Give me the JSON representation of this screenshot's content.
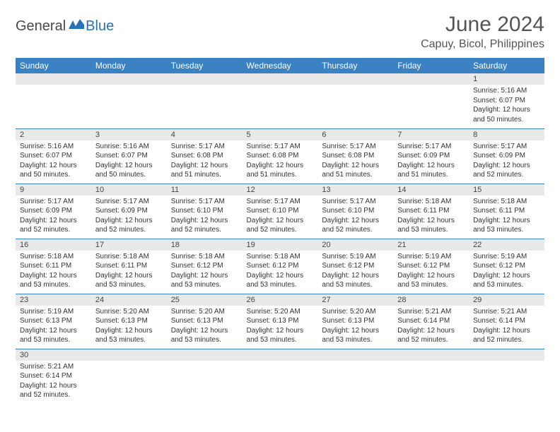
{
  "logo": {
    "text1": "General",
    "text2": "Blue"
  },
  "title": "June 2024",
  "location": "Capuy, Bicol, Philippines",
  "colors": {
    "header_bg": "#3a82c4",
    "header_text": "#ffffff",
    "daynum_bg": "#e9e9e9",
    "border": "#3a82c4",
    "logo_blue": "#2873b8",
    "logo_gray": "#4a4a4a"
  },
  "weekdays": [
    "Sunday",
    "Monday",
    "Tuesday",
    "Wednesday",
    "Thursday",
    "Friday",
    "Saturday"
  ],
  "weeks": [
    [
      {
        "day": "",
        "sunrise": "",
        "sunset": "",
        "daylight1": "",
        "daylight2": ""
      },
      {
        "day": "",
        "sunrise": "",
        "sunset": "",
        "daylight1": "",
        "daylight2": ""
      },
      {
        "day": "",
        "sunrise": "",
        "sunset": "",
        "daylight1": "",
        "daylight2": ""
      },
      {
        "day": "",
        "sunrise": "",
        "sunset": "",
        "daylight1": "",
        "daylight2": ""
      },
      {
        "day": "",
        "sunrise": "",
        "sunset": "",
        "daylight1": "",
        "daylight2": ""
      },
      {
        "day": "",
        "sunrise": "",
        "sunset": "",
        "daylight1": "",
        "daylight2": ""
      },
      {
        "day": "1",
        "sunrise": "Sunrise: 5:16 AM",
        "sunset": "Sunset: 6:07 PM",
        "daylight1": "Daylight: 12 hours",
        "daylight2": "and 50 minutes."
      }
    ],
    [
      {
        "day": "2",
        "sunrise": "Sunrise: 5:16 AM",
        "sunset": "Sunset: 6:07 PM",
        "daylight1": "Daylight: 12 hours",
        "daylight2": "and 50 minutes."
      },
      {
        "day": "3",
        "sunrise": "Sunrise: 5:16 AM",
        "sunset": "Sunset: 6:07 PM",
        "daylight1": "Daylight: 12 hours",
        "daylight2": "and 50 minutes."
      },
      {
        "day": "4",
        "sunrise": "Sunrise: 5:17 AM",
        "sunset": "Sunset: 6:08 PM",
        "daylight1": "Daylight: 12 hours",
        "daylight2": "and 51 minutes."
      },
      {
        "day": "5",
        "sunrise": "Sunrise: 5:17 AM",
        "sunset": "Sunset: 6:08 PM",
        "daylight1": "Daylight: 12 hours",
        "daylight2": "and 51 minutes."
      },
      {
        "day": "6",
        "sunrise": "Sunrise: 5:17 AM",
        "sunset": "Sunset: 6:08 PM",
        "daylight1": "Daylight: 12 hours",
        "daylight2": "and 51 minutes."
      },
      {
        "day": "7",
        "sunrise": "Sunrise: 5:17 AM",
        "sunset": "Sunset: 6:09 PM",
        "daylight1": "Daylight: 12 hours",
        "daylight2": "and 51 minutes."
      },
      {
        "day": "8",
        "sunrise": "Sunrise: 5:17 AM",
        "sunset": "Sunset: 6:09 PM",
        "daylight1": "Daylight: 12 hours",
        "daylight2": "and 52 minutes."
      }
    ],
    [
      {
        "day": "9",
        "sunrise": "Sunrise: 5:17 AM",
        "sunset": "Sunset: 6:09 PM",
        "daylight1": "Daylight: 12 hours",
        "daylight2": "and 52 minutes."
      },
      {
        "day": "10",
        "sunrise": "Sunrise: 5:17 AM",
        "sunset": "Sunset: 6:09 PM",
        "daylight1": "Daylight: 12 hours",
        "daylight2": "and 52 minutes."
      },
      {
        "day": "11",
        "sunrise": "Sunrise: 5:17 AM",
        "sunset": "Sunset: 6:10 PM",
        "daylight1": "Daylight: 12 hours",
        "daylight2": "and 52 minutes."
      },
      {
        "day": "12",
        "sunrise": "Sunrise: 5:17 AM",
        "sunset": "Sunset: 6:10 PM",
        "daylight1": "Daylight: 12 hours",
        "daylight2": "and 52 minutes."
      },
      {
        "day": "13",
        "sunrise": "Sunrise: 5:17 AM",
        "sunset": "Sunset: 6:10 PM",
        "daylight1": "Daylight: 12 hours",
        "daylight2": "and 52 minutes."
      },
      {
        "day": "14",
        "sunrise": "Sunrise: 5:18 AM",
        "sunset": "Sunset: 6:11 PM",
        "daylight1": "Daylight: 12 hours",
        "daylight2": "and 53 minutes."
      },
      {
        "day": "15",
        "sunrise": "Sunrise: 5:18 AM",
        "sunset": "Sunset: 6:11 PM",
        "daylight1": "Daylight: 12 hours",
        "daylight2": "and 53 minutes."
      }
    ],
    [
      {
        "day": "16",
        "sunrise": "Sunrise: 5:18 AM",
        "sunset": "Sunset: 6:11 PM",
        "daylight1": "Daylight: 12 hours",
        "daylight2": "and 53 minutes."
      },
      {
        "day": "17",
        "sunrise": "Sunrise: 5:18 AM",
        "sunset": "Sunset: 6:11 PM",
        "daylight1": "Daylight: 12 hours",
        "daylight2": "and 53 minutes."
      },
      {
        "day": "18",
        "sunrise": "Sunrise: 5:18 AM",
        "sunset": "Sunset: 6:12 PM",
        "daylight1": "Daylight: 12 hours",
        "daylight2": "and 53 minutes."
      },
      {
        "day": "19",
        "sunrise": "Sunrise: 5:18 AM",
        "sunset": "Sunset: 6:12 PM",
        "daylight1": "Daylight: 12 hours",
        "daylight2": "and 53 minutes."
      },
      {
        "day": "20",
        "sunrise": "Sunrise: 5:19 AM",
        "sunset": "Sunset: 6:12 PM",
        "daylight1": "Daylight: 12 hours",
        "daylight2": "and 53 minutes."
      },
      {
        "day": "21",
        "sunrise": "Sunrise: 5:19 AM",
        "sunset": "Sunset: 6:12 PM",
        "daylight1": "Daylight: 12 hours",
        "daylight2": "and 53 minutes."
      },
      {
        "day": "22",
        "sunrise": "Sunrise: 5:19 AM",
        "sunset": "Sunset: 6:12 PM",
        "daylight1": "Daylight: 12 hours",
        "daylight2": "and 53 minutes."
      }
    ],
    [
      {
        "day": "23",
        "sunrise": "Sunrise: 5:19 AM",
        "sunset": "Sunset: 6:13 PM",
        "daylight1": "Daylight: 12 hours",
        "daylight2": "and 53 minutes."
      },
      {
        "day": "24",
        "sunrise": "Sunrise: 5:20 AM",
        "sunset": "Sunset: 6:13 PM",
        "daylight1": "Daylight: 12 hours",
        "daylight2": "and 53 minutes."
      },
      {
        "day": "25",
        "sunrise": "Sunrise: 5:20 AM",
        "sunset": "Sunset: 6:13 PM",
        "daylight1": "Daylight: 12 hours",
        "daylight2": "and 53 minutes."
      },
      {
        "day": "26",
        "sunrise": "Sunrise: 5:20 AM",
        "sunset": "Sunset: 6:13 PM",
        "daylight1": "Daylight: 12 hours",
        "daylight2": "and 53 minutes."
      },
      {
        "day": "27",
        "sunrise": "Sunrise: 5:20 AM",
        "sunset": "Sunset: 6:13 PM",
        "daylight1": "Daylight: 12 hours",
        "daylight2": "and 53 minutes."
      },
      {
        "day": "28",
        "sunrise": "Sunrise: 5:21 AM",
        "sunset": "Sunset: 6:14 PM",
        "daylight1": "Daylight: 12 hours",
        "daylight2": "and 52 minutes."
      },
      {
        "day": "29",
        "sunrise": "Sunrise: 5:21 AM",
        "sunset": "Sunset: 6:14 PM",
        "daylight1": "Daylight: 12 hours",
        "daylight2": "and 52 minutes."
      }
    ],
    [
      {
        "day": "30",
        "sunrise": "Sunrise: 5:21 AM",
        "sunset": "Sunset: 6:14 PM",
        "daylight1": "Daylight: 12 hours",
        "daylight2": "and 52 minutes."
      },
      {
        "day": "",
        "sunrise": "",
        "sunset": "",
        "daylight1": "",
        "daylight2": ""
      },
      {
        "day": "",
        "sunrise": "",
        "sunset": "",
        "daylight1": "",
        "daylight2": ""
      },
      {
        "day": "",
        "sunrise": "",
        "sunset": "",
        "daylight1": "",
        "daylight2": ""
      },
      {
        "day": "",
        "sunrise": "",
        "sunset": "",
        "daylight1": "",
        "daylight2": ""
      },
      {
        "day": "",
        "sunrise": "",
        "sunset": "",
        "daylight1": "",
        "daylight2": ""
      },
      {
        "day": "",
        "sunrise": "",
        "sunset": "",
        "daylight1": "",
        "daylight2": ""
      }
    ]
  ]
}
